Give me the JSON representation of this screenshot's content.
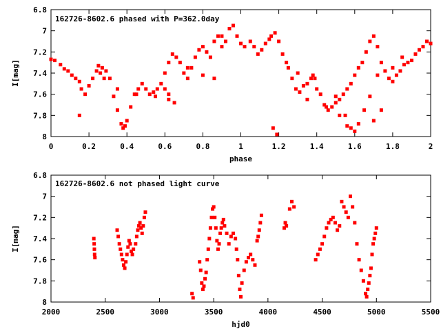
{
  "chart_data": [
    {
      "type": "scatter",
      "title": "162726-8602.6 phased with P=362.0day",
      "xlabel": "phase",
      "ylabel": "I[mag]",
      "xlim": [
        0,
        2
      ],
      "ylim": [
        6.8,
        8
      ],
      "y_inverted": true,
      "x_ticks": [
        0,
        0.2,
        0.4,
        0.6,
        0.8,
        1,
        1.2,
        1.4,
        1.6,
        1.8,
        2
      ],
      "x_tick_labels": [
        "0",
        "0.2",
        "0.4",
        "0.6",
        "0.8",
        "1",
        "1.2",
        "1.4",
        "1.6",
        "1.8",
        "2"
      ],
      "y_ticks": [
        6.8,
        7,
        7.2,
        7.4,
        7.6,
        7.8,
        8
      ],
      "y_tick_labels": [
        "6.8",
        "7",
        "7.2",
        "7.4",
        "7.6",
        "7.8",
        "8"
      ],
      "marker_color": "#ff0000",
      "grid": false,
      "series": [
        {
          "x": [
            0.0,
            0.02,
            0.05,
            0.07,
            0.09,
            0.11,
            0.13,
            0.15,
            0.16,
            0.18,
            0.2,
            0.22,
            0.24,
            0.25,
            0.27,
            0.29,
            0.31,
            0.33,
            0.35,
            0.37,
            0.38,
            0.39,
            0.4,
            0.42,
            0.44,
            0.46,
            0.48,
            0.5,
            0.52,
            0.54,
            0.56,
            0.58,
            0.6,
            0.62,
            0.64,
            0.66,
            0.68,
            0.7,
            0.72,
            0.74,
            0.76,
            0.78,
            0.8,
            0.82,
            0.84,
            0.86,
            0.88,
            0.9,
            0.92,
            0.94,
            0.96,
            0.98,
            1.0,
            1.02,
            1.05,
            1.07,
            1.09,
            1.11,
            1.13,
            1.15,
            1.16,
            1.18,
            1.2,
            1.22,
            1.24,
            1.25,
            1.27,
            1.29,
            1.31,
            1.33,
            1.35,
            1.37,
            1.38,
            1.39,
            1.4,
            1.42,
            1.44,
            1.46,
            1.48,
            1.5,
            1.52,
            1.54,
            1.56,
            1.58,
            1.6,
            1.62,
            1.64,
            1.66,
            1.68,
            1.7,
            1.72,
            1.74,
            1.76,
            1.78,
            1.8,
            1.82,
            1.84,
            1.86,
            1.88,
            1.9,
            1.92,
            1.94,
            1.96,
            1.98,
            2.0,
            0.15,
            0.35,
            0.45,
            0.55,
            0.62,
            0.72,
            0.8,
            0.86,
            1.17,
            1.19,
            1.35,
            1.45,
            1.55,
            1.6,
            1.62,
            1.65,
            1.68,
            1.72,
            1.8,
            1.85,
            0.26,
            0.28,
            0.6,
            0.62,
            0.65,
            0.9,
            1.3,
            1.5,
            1.52,
            1.56,
            1.58,
            1.7,
            1.74
          ],
          "y": [
            7.27,
            7.28,
            7.32,
            7.36,
            7.38,
            7.42,
            7.45,
            7.48,
            7.55,
            7.6,
            7.52,
            7.45,
            7.38,
            7.33,
            7.35,
            7.38,
            7.45,
            7.62,
            7.75,
            7.88,
            7.92,
            7.9,
            7.85,
            7.72,
            7.6,
            7.55,
            7.5,
            7.55,
            7.6,
            7.58,
            7.55,
            7.5,
            7.4,
            7.3,
            7.22,
            7.25,
            7.3,
            7.4,
            7.45,
            7.35,
            7.25,
            7.18,
            7.15,
            7.2,
            7.25,
            7.1,
            7.05,
            7.15,
            7.1,
            6.98,
            6.95,
            7.05,
            7.12,
            7.15,
            7.1,
            7.15,
            7.22,
            7.18,
            7.12,
            7.08,
            7.05,
            7.02,
            7.1,
            7.22,
            7.3,
            7.35,
            7.45,
            7.55,
            7.58,
            7.52,
            7.5,
            7.45,
            7.42,
            7.45,
            7.55,
            7.6,
            7.7,
            7.75,
            7.72,
            7.68,
            7.65,
            7.6,
            7.55,
            7.5,
            7.42,
            7.35,
            7.3,
            7.2,
            7.1,
            7.05,
            7.15,
            7.3,
            7.38,
            7.45,
            7.48,
            7.42,
            7.38,
            7.32,
            7.3,
            7.28,
            7.22,
            7.18,
            7.15,
            7.1,
            7.12,
            7.8,
            7.55,
            7.6,
            7.62,
            7.65,
            7.35,
            7.42,
            7.45,
            7.92,
            7.98,
            7.65,
            7.72,
            7.8,
            7.95,
            7.88,
            7.75,
            7.62,
            7.42,
            7.35,
            7.25,
            7.4,
            7.45,
            7.55,
            7.6,
            7.68,
            7.05,
            7.4,
            7.62,
            7.8,
            7.9,
            7.92,
            7.85,
            7.75
          ]
        }
      ]
    },
    {
      "type": "scatter",
      "title": "162726-8602.6 not phased light curve",
      "xlabel": "hjd0",
      "ylabel": "I[mag]",
      "xlim": [
        2000,
        5500
      ],
      "ylim": [
        6.8,
        8
      ],
      "y_inverted": true,
      "x_ticks": [
        2000,
        2500,
        3000,
        3500,
        4000,
        4500,
        5000,
        5500
      ],
      "x_tick_labels": [
        "2000",
        "2500",
        "3000",
        "3500",
        "4000",
        "4500",
        "5000",
        "5500"
      ],
      "y_ticks": [
        6.8,
        7,
        7.2,
        7.4,
        7.6,
        7.8,
        8
      ],
      "y_tick_labels": [
        "6.8",
        "7",
        "7.2",
        "7.4",
        "7.6",
        "7.8",
        "8"
      ],
      "marker_color": "#ff0000",
      "grid": false,
      "series": [
        {
          "x": [
            2395,
            2398,
            2400,
            2402,
            2405,
            2610,
            2620,
            2630,
            2640,
            2650,
            2660,
            2670,
            2680,
            2690,
            2700,
            2710,
            2720,
            2730,
            2740,
            2750,
            2760,
            2780,
            2790,
            2800,
            2810,
            2820,
            2830,
            2840,
            2850,
            2860,
            2870,
            3300,
            3310,
            3370,
            3380,
            3390,
            3400,
            3410,
            3420,
            3430,
            3440,
            3450,
            3460,
            3470,
            3480,
            3490,
            3500,
            3510,
            3520,
            3530,
            3540,
            3550,
            3560,
            3570,
            3580,
            3590,
            3600,
            3620,
            3640,
            3660,
            3680,
            3700,
            3710,
            3720,
            3730,
            3740,
            3750,
            3760,
            3780,
            3800,
            3820,
            3840,
            3860,
            3880,
            3900,
            3910,
            3920,
            3930,
            3940,
            4150,
            4160,
            4170,
            4200,
            4220,
            4240,
            4440,
            4460,
            4480,
            4500,
            4520,
            4540,
            4560,
            4580,
            4600,
            4620,
            4640,
            4660,
            4680,
            4700,
            4720,
            4740,
            4760,
            4780,
            4800,
            4820,
            4840,
            4860,
            4880,
            4900,
            4910,
            4920,
            4930,
            4940,
            4950,
            4960,
            4970,
            4980,
            4990,
            5000
          ],
          "y": [
            7.4,
            7.45,
            7.5,
            7.55,
            7.58,
            7.32,
            7.38,
            7.45,
            7.5,
            7.55,
            7.6,
            7.65,
            7.68,
            7.62,
            7.55,
            7.48,
            7.42,
            7.45,
            7.52,
            7.55,
            7.5,
            7.45,
            7.38,
            7.32,
            7.28,
            7.25,
            7.3,
            7.35,
            7.28,
            7.2,
            7.15,
            7.92,
            7.96,
            7.62,
            7.7,
            7.82,
            7.88,
            7.85,
            7.78,
            7.72,
            7.6,
            7.5,
            7.4,
            7.3,
            7.2,
            7.12,
            7.1,
            7.2,
            7.3,
            7.42,
            7.5,
            7.45,
            7.35,
            7.3,
            7.25,
            7.22,
            7.28,
            7.35,
            7.45,
            7.38,
            7.35,
            7.4,
            7.5,
            7.6,
            7.75,
            7.88,
            7.95,
            7.82,
            7.7,
            7.62,
            7.58,
            7.55,
            7.6,
            7.65,
            7.42,
            7.38,
            7.32,
            7.25,
            7.18,
            7.3,
            7.25,
            7.28,
            7.12,
            7.05,
            7.1,
            7.6,
            7.55,
            7.5,
            7.45,
            7.38,
            7.3,
            7.25,
            7.22,
            7.2,
            7.25,
            7.32,
            7.28,
            7.05,
            7.1,
            7.15,
            7.2,
            7.0,
            7.1,
            7.25,
            7.45,
            7.6,
            7.7,
            7.8,
            7.92,
            7.95,
            7.88,
            7.82,
            7.75,
            7.68,
            7.55,
            7.45,
            7.4,
            7.35,
            7.3
          ]
        }
      ]
    }
  ]
}
